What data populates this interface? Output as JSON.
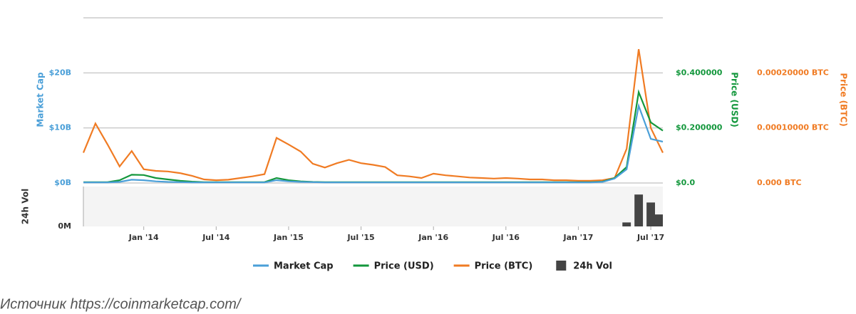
{
  "chart_data": [
    {
      "type": "line",
      "ylabel": "Market Cap",
      "y2label": "Price (USD)",
      "y3label": "Price (BTC)",
      "x": [
        "2013-08",
        "2013-09",
        "2013-10",
        "2013-11",
        "2013-12",
        "2014-01",
        "2014-02",
        "2014-03",
        "2014-04",
        "2014-05",
        "2014-06",
        "2014-07",
        "2014-08",
        "2014-09",
        "2014-10",
        "2014-11",
        "2014-12",
        "2015-01",
        "2015-02",
        "2015-03",
        "2015-04",
        "2015-05",
        "2015-06",
        "2015-07",
        "2015-08",
        "2015-09",
        "2015-10",
        "2015-11",
        "2015-12",
        "2016-01",
        "2016-02",
        "2016-03",
        "2016-04",
        "2016-05",
        "2016-06",
        "2016-07",
        "2016-08",
        "2016-09",
        "2016-10",
        "2016-11",
        "2016-12",
        "2017-01",
        "2017-02",
        "2017-03",
        "2017-04",
        "2017-05",
        "2017-06",
        "2017-07",
        "2017-08"
      ],
      "xlim": [
        "2013-08",
        "2017-08"
      ],
      "xticks": [
        {
          "value": "2014-01",
          "label": "Jan '14"
        },
        {
          "value": "2014-07",
          "label": "Jul '14"
        },
        {
          "value": "2015-01",
          "label": "Jan '15"
        },
        {
          "value": "2015-07",
          "label": "Jul '15"
        },
        {
          "value": "2016-01",
          "label": "Jan '16"
        },
        {
          "value": "2016-07",
          "label": "Jul '16"
        },
        {
          "value": "2017-01",
          "label": "Jan '17"
        },
        {
          "value": "2017-07",
          "label": "Jul '17"
        }
      ],
      "ylim": [
        0,
        30
      ],
      "yticks": [
        {
          "value": 0,
          "label": "$0B"
        },
        {
          "value": 10,
          "label": "$10B"
        },
        {
          "value": 20,
          "label": "$20B"
        }
      ],
      "y2lim": [
        0,
        0.6
      ],
      "y2ticks": [
        {
          "value": 0,
          "label": "$0.0"
        },
        {
          "value": 0.2,
          "label": "$0.200000"
        },
        {
          "value": 0.4,
          "label": "$0.400000"
        }
      ],
      "y3lim": [
        0,
        0.0003
      ],
      "y3ticks": [
        {
          "value": 0,
          "label": "0.000 BTC"
        },
        {
          "value": 0.0001,
          "label": "0.00010000 BTC"
        },
        {
          "value": 0.0002,
          "label": "0.00020000 BTC"
        }
      ],
      "grid": true,
      "series": [
        {
          "name": "Market Cap",
          "color": "#4a9fd8",
          "axis": "y",
          "values": [
            0.1,
            0.1,
            0.1,
            0.2,
            0.6,
            0.5,
            0.3,
            0.2,
            0.15,
            0.1,
            0.1,
            0.1,
            0.1,
            0.1,
            0.1,
            0.1,
            0.5,
            0.3,
            0.2,
            0.15,
            0.1,
            0.1,
            0.1,
            0.1,
            0.1,
            0.1,
            0.1,
            0.1,
            0.1,
            0.1,
            0.1,
            0.1,
            0.1,
            0.1,
            0.1,
            0.1,
            0.1,
            0.1,
            0.1,
            0.1,
            0.1,
            0.1,
            0.1,
            0.2,
            0.8,
            2.5,
            14,
            8,
            7.5
          ]
        },
        {
          "name": "Price (USD)",
          "color": "#13973c",
          "axis": "y2",
          "values": [
            0.003,
            0.003,
            0.003,
            0.01,
            0.03,
            0.029,
            0.018,
            0.013,
            0.008,
            0.005,
            0.003,
            0.003,
            0.003,
            0.003,
            0.003,
            0.003,
            0.018,
            0.01,
            0.006,
            0.004,
            0.003,
            0.003,
            0.003,
            0.003,
            0.003,
            0.003,
            0.003,
            0.003,
            0.003,
            0.003,
            0.003,
            0.003,
            0.003,
            0.003,
            0.003,
            0.003,
            0.003,
            0.003,
            0.003,
            0.003,
            0.003,
            0.003,
            0.003,
            0.005,
            0.018,
            0.058,
            0.33,
            0.22,
            0.19
          ]
        },
        {
          "name": "Price (BTC)",
          "color": "#f07b23",
          "axis": "y3",
          "values": [
            5.5e-05,
            0.000108,
            7e-05,
            3e-05,
            5.8e-05,
            2.5e-05,
            2.2e-05,
            2.1e-05,
            1.8e-05,
            1.3e-05,
            6.5e-06,
            5e-06,
            6e-06,
            9e-06,
            1.2e-05,
            1.6e-05,
            8.2e-05,
            7e-05,
            5.7e-05,
            3.5e-05,
            2.8e-05,
            3.6e-05,
            4.2e-05,
            3.6e-05,
            3.3e-05,
            2.9e-05,
            1.4e-05,
            1.2e-05,
            9e-06,
            1.7e-05,
            1.4e-05,
            1.2e-05,
            1e-05,
            9e-06,
            8e-06,
            9e-06,
            8e-06,
            6.5e-06,
            6.5e-06,
            5e-06,
            5e-06,
            4e-06,
            4e-06,
            5e-06,
            9e-06,
            6.2e-05,
            0.000243,
            0.0001,
            5.5e-05
          ]
        }
      ]
    },
    {
      "type": "bar",
      "ylabel": "24h Vol",
      "ylim": [
        0,
        50
      ],
      "yticks": [
        {
          "value": 0,
          "label": "0M"
        }
      ],
      "series": [
        {
          "name": "24h Vol",
          "color": "#444444",
          "values": [
            0,
            0,
            0,
            0,
            0,
            0,
            0,
            0,
            0,
            0,
            0,
            0,
            0,
            0,
            0,
            0,
            0,
            0,
            0,
            0,
            0,
            0,
            0,
            0,
            0,
            0,
            0,
            0,
            0,
            0,
            0,
            0,
            0,
            0,
            0,
            0,
            0,
            0,
            0,
            0,
            0,
            0,
            0,
            0,
            0,
            5,
            40,
            30,
            15
          ]
        }
      ]
    }
  ],
  "source": "Источник https://coinmarketcap.com/"
}
